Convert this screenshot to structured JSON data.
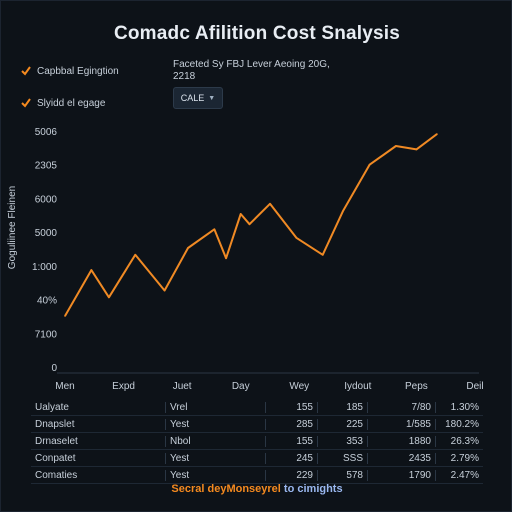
{
  "title": "Comadc Afilition Cost Snalysis",
  "filters": [
    {
      "label": "Capbbal Egingtion",
      "checked": true
    },
    {
      "label": "Slyidd el egage",
      "checked": true
    }
  ],
  "subheader": {
    "line1": "Faceted Sy FBJ Lever Aeoing 20G,",
    "line2": "2218"
  },
  "dropdown": {
    "value": "CALE",
    "icon": "chevron-down-icon"
  },
  "colors": {
    "background": "#0d1218",
    "line": "#f08a24",
    "accent": "#f58a1f",
    "link": "#9ab8f0"
  },
  "chart_data": {
    "type": "line",
    "title": "",
    "xlabel": "",
    "ylabel": "Goguliinee Fleinen",
    "ytick_labels": [
      "5006",
      "2305",
      "6000",
      "5000",
      "1:000",
      "40%",
      "7100",
      "0"
    ],
    "xtick_labels": [
      "Men",
      "Expd",
      "Juet",
      "Day",
      "Wey",
      "Iydout",
      "Peps",
      "Deil"
    ],
    "grid": false,
    "ylim": [
      0,
      7
    ],
    "series": [
      {
        "values": [
          {
            "x": 0.0,
            "y": 1.5
          },
          {
            "x": 0.45,
            "y": 2.85
          },
          {
            "x": 0.75,
            "y": 2.05
          },
          {
            "x": 1.2,
            "y": 3.3
          },
          {
            "x": 1.7,
            "y": 2.25
          },
          {
            "x": 2.1,
            "y": 3.5
          },
          {
            "x": 2.55,
            "y": 4.05
          },
          {
            "x": 2.75,
            "y": 3.2
          },
          {
            "x": 3.0,
            "y": 4.5
          },
          {
            "x": 3.15,
            "y": 4.2
          },
          {
            "x": 3.5,
            "y": 4.8
          },
          {
            "x": 3.95,
            "y": 3.8
          },
          {
            "x": 4.4,
            "y": 3.3
          },
          {
            "x": 4.75,
            "y": 4.6
          },
          {
            "x": 5.2,
            "y": 5.95
          },
          {
            "x": 5.65,
            "y": 6.5
          },
          {
            "x": 6.0,
            "y": 6.4
          },
          {
            "x": 6.35,
            "y": 6.85
          }
        ]
      }
    ]
  },
  "table": {
    "rows": [
      [
        "Ualyate",
        "Vrel",
        "155",
        "185",
        "7/80",
        "1.30%"
      ],
      [
        "Dnapslet",
        "Yest",
        "285",
        "225",
        "1/585",
        "180.2%"
      ],
      [
        "Drnaselet",
        "Nbol",
        "155",
        "353",
        "1880",
        "26.3%"
      ],
      [
        "Conpatet",
        "Yest",
        "245",
        "SSS",
        "2435",
        "2.79%"
      ],
      [
        "Comaties",
        "Yest",
        "229",
        "578",
        "1790",
        "2.47%"
      ]
    ]
  },
  "footer": {
    "part1": "Secral deyMonseyrel",
    "part2": "to cimights"
  }
}
